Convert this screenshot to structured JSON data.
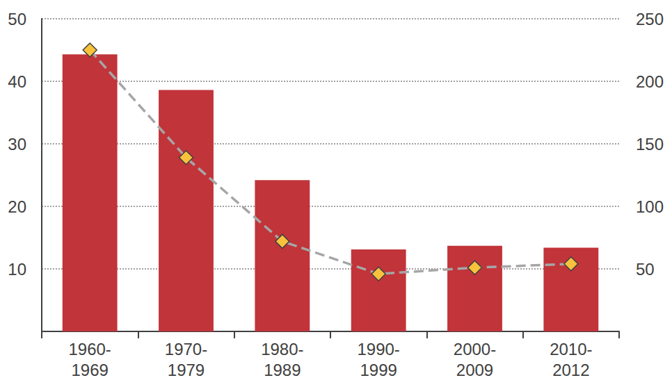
{
  "chart_data": {
    "type": "bar",
    "categories": [
      "1960-1969",
      "1970-1979",
      "1980-1989",
      "1990-1999",
      "2000-2009",
      "2010-2012"
    ],
    "series": [
      {
        "type": "bar",
        "color": "#c1343a",
        "values": [
          44.3,
          38.6,
          24.2,
          13.1,
          13.7,
          13.4
        ]
      },
      {
        "type": "line",
        "axis": "y2",
        "color": "#a6a6a6",
        "line_style": "dashed",
        "marker": "diamond",
        "values": [
          225,
          139,
          72,
          46,
          51,
          54
        ]
      }
    ],
    "ylim": [
      0,
      50
    ],
    "yticks": [
      10,
      20,
      30,
      40,
      50
    ],
    "y2lim": [
      0,
      250
    ],
    "y2ticks": [
      50,
      100,
      150,
      200,
      250
    ],
    "grid": true
  }
}
